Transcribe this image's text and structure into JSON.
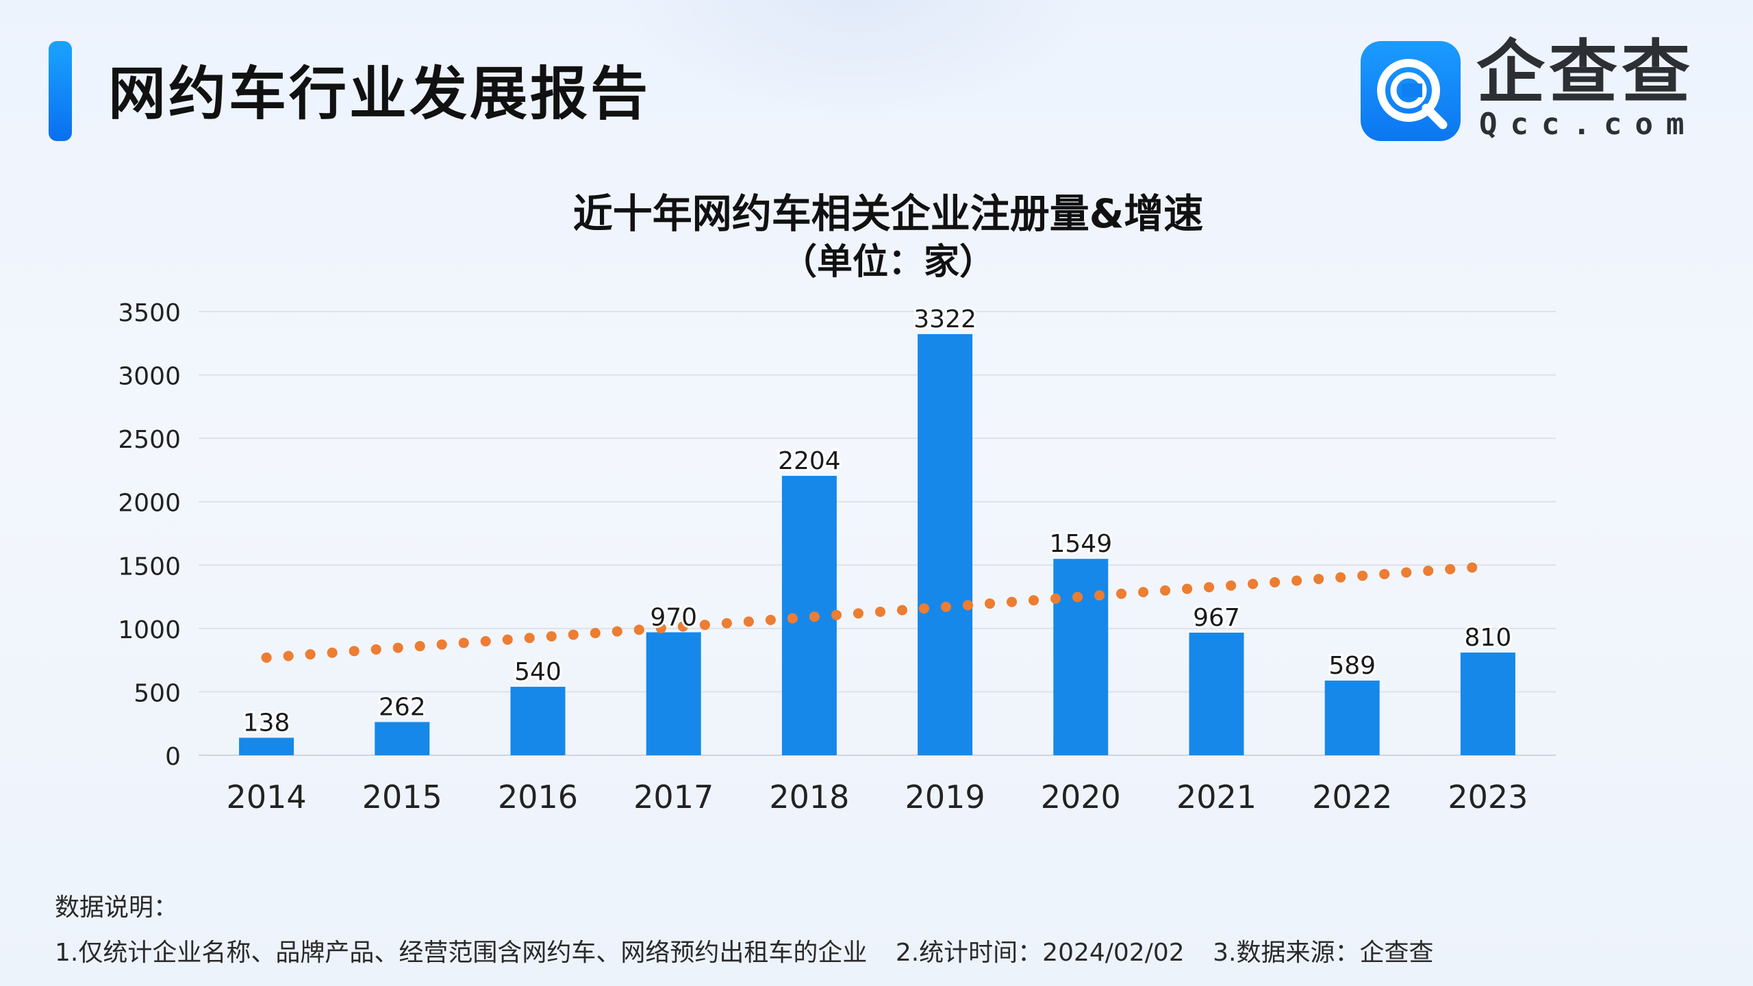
{
  "header": {
    "title": "网约车行业发展报告"
  },
  "logo": {
    "name": "企查查",
    "domain": "Qcc.com",
    "icon": "qcc-logo-icon"
  },
  "chart_data": {
    "type": "bar",
    "title": "近十年网约车相关企业注册量&增速",
    "subtitle": "（单位：家）",
    "categories": [
      "2014",
      "2015",
      "2016",
      "2017",
      "2018",
      "2019",
      "2020",
      "2021",
      "2022",
      "2023"
    ],
    "series": [
      {
        "name": "注册量",
        "values": [
          138,
          262,
          540,
          970,
          2204,
          3322,
          1549,
          967,
          589,
          810
        ],
        "color": "#1688ea"
      }
    ],
    "trendline": {
      "type": "linear",
      "start_value": 770,
      "end_value": 1490,
      "color": "#ed7d31",
      "style": "dotted"
    },
    "y_ticks": [
      "0",
      "500",
      "1000",
      "1500",
      "2000",
      "2500",
      "3000",
      "3500"
    ],
    "ylim": [
      0,
      3500
    ],
    "xlabel": "",
    "ylabel": "",
    "grid": true,
    "legend": "none"
  },
  "notes": {
    "title": "数据说明：",
    "items": [
      "1.仅统计企业名称、品牌产品、经营范围含网约车、网络预约出租车的企业",
      "2.统计时间：2024/02/02",
      "3.数据来源：企查查"
    ]
  }
}
